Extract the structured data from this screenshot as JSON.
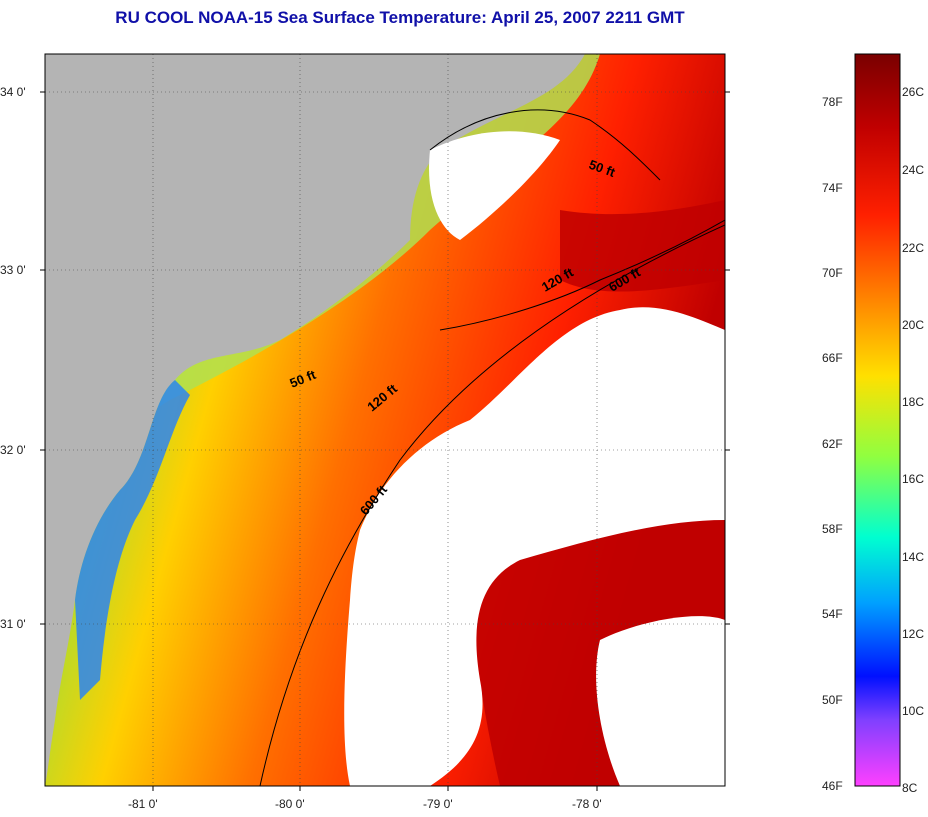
{
  "title": "RU COOL  NOAA-15  Sea Surface Temperature:  April 25, 2007 2211 GMT",
  "map": {
    "lat_labels": [
      "34 0'",
      "33 0'",
      "32 0'",
      "31 0'"
    ],
    "lon_labels": [
      "-81 0'",
      "-80 0'",
      "-79 0'",
      "-78 0'"
    ],
    "contour_labels": [
      "50 ft",
      "120 ft",
      "600 ft",
      "50 ft",
      "120 ft",
      "600 ft"
    ]
  },
  "colorbar": {
    "fahrenheit_labels": [
      "78F",
      "74F",
      "70F",
      "66F",
      "62F",
      "58F",
      "54F",
      "50F",
      "46F"
    ],
    "celsius_labels": [
      "26C",
      "24C",
      "22C",
      "20C",
      "18C",
      "16C",
      "14C",
      "12C",
      "10C",
      "8C"
    ],
    "colors": [
      "#7a0000",
      "#c00000",
      "#ff2000",
      "#ff8000",
      "#ffe000",
      "#90ff40",
      "#00ffd0",
      "#00a0ff",
      "#0010ff",
      "#8040ff",
      "#ff40ff"
    ]
  }
}
